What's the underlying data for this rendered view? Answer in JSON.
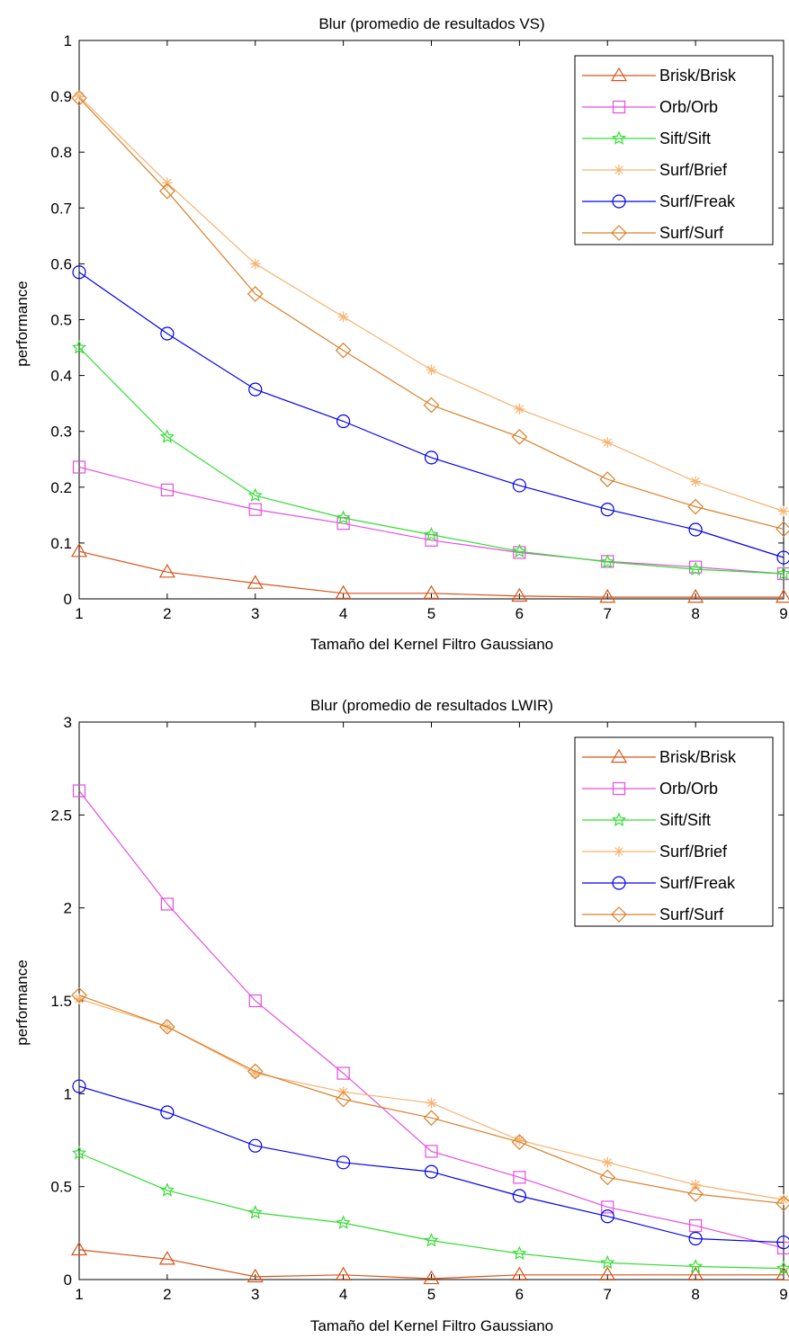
{
  "chart_data": [
    {
      "type": "line",
      "title": "Blur (promedio de resultados VS)",
      "xlabel": "Tamaño del Kernel Filtro Gaussiano",
      "ylabel": "performance",
      "xlim": [
        1,
        9
      ],
      "ylim": [
        0,
        1
      ],
      "x": [
        1,
        2,
        3,
        4,
        5,
        6,
        7,
        8,
        9
      ],
      "xticks": [
        "1",
        "2",
        "3",
        "4",
        "5",
        "6",
        "7",
        "8",
        "9"
      ],
      "yticks": [
        "0",
        "0.1",
        "0.2",
        "0.3",
        "0.4",
        "0.5",
        "0.6",
        "0.7",
        "0.8",
        "0.9",
        "1"
      ],
      "ytick_values": [
        0,
        0.1,
        0.2,
        0.3,
        0.4,
        0.5,
        0.6,
        0.7,
        0.8,
        0.9,
        1
      ],
      "grid": false,
      "legend_position": "top-right",
      "series": [
        {
          "name": "Brisk/Brisk",
          "color": "#d95319",
          "marker": "triangle",
          "values": [
            0.085,
            0.048,
            0.028,
            0.01,
            0.01,
            0.005,
            0.003,
            0.003,
            0.003
          ]
        },
        {
          "name": "Orb/Orb",
          "color": "#e44ee0",
          "marker": "square",
          "values": [
            0.236,
            0.195,
            0.16,
            0.135,
            0.105,
            0.083,
            0.067,
            0.057,
            0.045
          ]
        },
        {
          "name": "Sift/Sift",
          "color": "#33dd33",
          "marker": "star",
          "values": [
            0.45,
            0.29,
            0.185,
            0.145,
            0.115,
            0.085,
            0.066,
            0.053,
            0.045
          ]
        },
        {
          "name": "Surf/Brief",
          "color": "#f7b26e",
          "marker": "asterisk",
          "values": [
            0.9,
            0.745,
            0.6,
            0.505,
            0.41,
            0.34,
            0.28,
            0.21,
            0.157
          ]
        },
        {
          "name": "Surf/Freak",
          "color": "#0000ee",
          "marker": "circle",
          "values": [
            0.585,
            0.475,
            0.375,
            0.318,
            0.253,
            0.203,
            0.16,
            0.124,
            0.074
          ]
        },
        {
          "name": "Surf/Surf",
          "color": "#d9802a",
          "marker": "diamond",
          "values": [
            0.897,
            0.73,
            0.546,
            0.445,
            0.347,
            0.29,
            0.214,
            0.165,
            0.125
          ]
        }
      ]
    },
    {
      "type": "line",
      "title": "Blur (promedio de resultados LWIR)",
      "xlabel": "Tamaño del Kernel Filtro Gaussiano",
      "ylabel": "performance",
      "xlim": [
        1,
        9
      ],
      "ylim": [
        0,
        3
      ],
      "x": [
        1,
        2,
        3,
        4,
        5,
        6,
        7,
        8,
        9
      ],
      "xticks": [
        "1",
        "2",
        "3",
        "4",
        "5",
        "6",
        "7",
        "8",
        "9"
      ],
      "yticks": [
        "0",
        "0.5",
        "1",
        "1.5",
        "2",
        "2.5",
        "3"
      ],
      "ytick_values": [
        0,
        0.5,
        1,
        1.5,
        2,
        2.5,
        3
      ],
      "grid": false,
      "legend_position": "top-right",
      "series": [
        {
          "name": "Brisk/Brisk",
          "color": "#d95319",
          "marker": "triangle",
          "values": [
            0.16,
            0.11,
            0.015,
            0.025,
            0.005,
            0.025,
            0.025,
            0.025,
            0.025
          ]
        },
        {
          "name": "Orb/Orb",
          "color": "#e44ee0",
          "marker": "square",
          "values": [
            2.63,
            2.02,
            1.5,
            1.11,
            0.69,
            0.55,
            0.39,
            0.29,
            0.17
          ]
        },
        {
          "name": "Sift/Sift",
          "color": "#33dd33",
          "marker": "star",
          "values": [
            0.68,
            0.48,
            0.36,
            0.305,
            0.21,
            0.14,
            0.09,
            0.07,
            0.06
          ]
        },
        {
          "name": "Surf/Brief",
          "color": "#f7b26e",
          "marker": "asterisk",
          "values": [
            1.51,
            1.36,
            1.11,
            1.01,
            0.95,
            0.75,
            0.63,
            0.51,
            0.43
          ]
        },
        {
          "name": "Surf/Freak",
          "color": "#0000ee",
          "marker": "circle",
          "values": [
            1.04,
            0.9,
            0.72,
            0.63,
            0.58,
            0.45,
            0.34,
            0.22,
            0.2
          ]
        },
        {
          "name": "Surf/Surf",
          "color": "#d9802a",
          "marker": "diamond",
          "values": [
            1.53,
            1.36,
            1.12,
            0.97,
            0.87,
            0.74,
            0.55,
            0.46,
            0.41
          ]
        }
      ]
    }
  ]
}
